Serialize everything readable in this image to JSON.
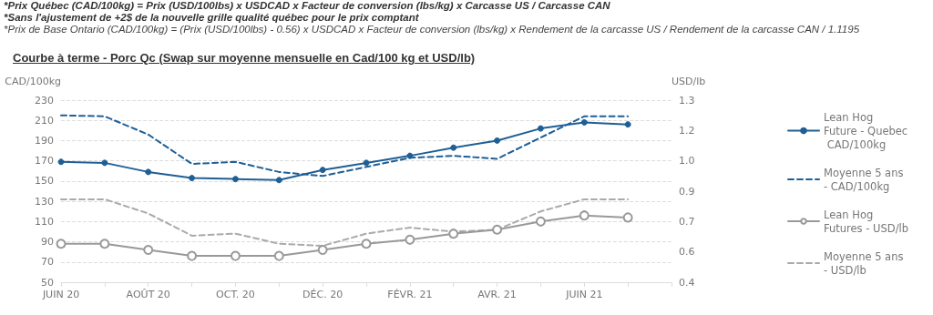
{
  "chart_data": {
    "type": "line",
    "title": "Courbe à terme - Porc Qc (Swap sur moyenne mensuelle en Cad/100 kg et USD/lb)",
    "annotations": [
      "*Prix Québec (CAD/100kg) = Prix (USD/100lbs) x USDCAD x Facteur de conversion (lbs/kg) x Carcasse US / Carcasse CAN",
      "*Sans l'ajustement de +2$ de la nouvelle grille qualité québec pour le prix comptant",
      "*Prix de Base Ontario (CAD/100kg) = (Prix (USD/100lbs) - 0.56) x USDCAD x Facteur de conversion (lbs/kg) x Rendement de la carcasse US / Rendement de la carcasse CAN / 1.1195"
    ],
    "ylabel": "CAD/100kg",
    "y2label": "USD/lb",
    "categories": [
      "JUIN 20",
      null,
      "AOÛT 20",
      null,
      "OCT. 20",
      null,
      "DÉC. 20",
      null,
      "FÉVR. 21",
      null,
      "AVR. 21",
      null,
      "JUIN 21",
      null,
      null
    ],
    "series": [
      {
        "name": "Lean Hog Future - Quebec CAD/100kg",
        "color": "#1f5f96",
        "marker": "circle",
        "line_style": "solid",
        "values": [
          169,
          168,
          159,
          153,
          152,
          151,
          161,
          168,
          175,
          183,
          190,
          202,
          208,
          206,
          null
        ]
      },
      {
        "name": "Moyenne 5 ans - CAD/100kg",
        "color": "#1f5f96",
        "marker": "none",
        "line_style": "dashed",
        "values": [
          215,
          214,
          196,
          167,
          169,
          159,
          155,
          164,
          173,
          175,
          172,
          193,
          214,
          214,
          null
        ]
      },
      {
        "name": "Lean Hog Futures - USD/lb",
        "color": "#999999",
        "marker": "circle",
        "line_style": "solid",
        "axis": "y2",
        "values": [
          0.59,
          0.59,
          0.56,
          0.53,
          0.53,
          0.53,
          0.56,
          0.59,
          0.61,
          0.64,
          0.66,
          0.7,
          0.73,
          0.72,
          null
        ]
      },
      {
        "name": "Moyenne 5 ans - USD/lb",
        "color": "#aaaaaa",
        "marker": "none",
        "line_style": "dashed",
        "axis": "y2",
        "values": [
          0.81,
          0.81,
          0.74,
          0.63,
          0.64,
          0.59,
          0.58,
          0.64,
          0.67,
          0.65,
          0.66,
          0.75,
          0.81,
          0.81,
          null
        ]
      }
    ],
    "ylim": [
      50,
      230
    ],
    "yticks": [
      50,
      70,
      90,
      110,
      130,
      150,
      170,
      190,
      210,
      230
    ],
    "y2lim": [
      0.4,
      1.3
    ],
    "y2ticks": [
      0.4,
      {
        "value": 0.55,
        "label": "0.6"
      },
      0.7,
      {
        "value": 0.85,
        "label": "0.9"
      },
      {
        "value": 1,
        "label": "1.0"
      },
      {
        "value": 1.15,
        "label": "1.2"
      },
      1.3
    ],
    "grid": "y",
    "legend": "right"
  }
}
